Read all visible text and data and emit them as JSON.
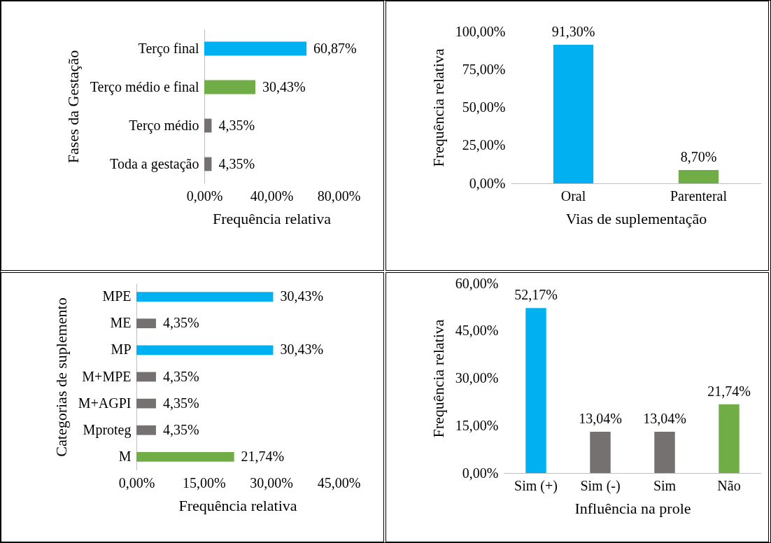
{
  "chart_data": [
    {
      "type": "bar",
      "orientation": "horizontal",
      "ylabel": "Fases da Gestação",
      "xlabel": "Frequência relativa",
      "categories": [
        "Terço final",
        "Terço médio e final",
        "Terço médio",
        "Toda a gestação"
      ],
      "values": [
        60.87,
        30.43,
        4.35,
        4.35
      ],
      "colors": [
        "#00b0f0",
        "#70ad47",
        "#767171",
        "#767171"
      ],
      "value_labels": [
        "60,87%",
        "30,43%",
        "4,35%",
        "4,35%"
      ],
      "xlim": [
        0,
        80
      ],
      "xticks": [
        {
          "value": 0,
          "label": "0,00%"
        },
        {
          "value": 40,
          "label": "40,00%"
        },
        {
          "value": 80,
          "label": "80,00%"
        }
      ]
    },
    {
      "type": "bar",
      "ylabel": "Frequência relativa",
      "xlabel": "Vias de suplementação",
      "categories": [
        "Oral",
        "Parenteral"
      ],
      "values": [
        91.3,
        8.7
      ],
      "colors": [
        "#00b0f0",
        "#70ad47"
      ],
      "value_labels": [
        "91,30%",
        "8,70%"
      ],
      "ylim": [
        0,
        100
      ],
      "yticks": [
        {
          "value": 0,
          "label": "0,00%"
        },
        {
          "value": 25,
          "label": "25,00%"
        },
        {
          "value": 50,
          "label": "50,00%"
        },
        {
          "value": 75,
          "label": "75,00%"
        },
        {
          "value": 100,
          "label": "100,00%"
        }
      ]
    },
    {
      "type": "bar",
      "orientation": "horizontal",
      "ylabel": "Categorias de suplemento",
      "xlabel": "Frequência relativa",
      "categories": [
        "MPE",
        "ME",
        "MP",
        "M+MPE",
        "M+AGPI",
        "Mproteg",
        "M"
      ],
      "values": [
        30.43,
        4.35,
        30.43,
        4.35,
        4.35,
        4.35,
        21.74
      ],
      "colors": [
        "#00b0f0",
        "#767171",
        "#00b0f0",
        "#767171",
        "#767171",
        "#767171",
        "#70ad47"
      ],
      "value_labels": [
        "30,43%",
        "4,35%",
        "30,43%",
        "4,35%",
        "4,35%",
        "4,35%",
        "21,74%"
      ],
      "xlim": [
        0,
        45
      ],
      "xticks": [
        {
          "value": 0,
          "label": "0,00%"
        },
        {
          "value": 15,
          "label": "15,00%"
        },
        {
          "value": 30,
          "label": "30,00%"
        },
        {
          "value": 45,
          "label": "45,00%"
        }
      ]
    },
    {
      "type": "bar",
      "ylabel": "Frequência relativa",
      "xlabel": "Influência na prole",
      "categories": [
        "Sim (+)",
        "Sim (-)",
        "Sim",
        "Não"
      ],
      "values": [
        52.17,
        13.04,
        13.04,
        21.74
      ],
      "colors": [
        "#00b0f0",
        "#767171",
        "#767171",
        "#70ad47"
      ],
      "value_labels": [
        "52,17%",
        "13,04%",
        "13,04%",
        "21,74%"
      ],
      "ylim": [
        0,
        60
      ],
      "yticks": [
        {
          "value": 0,
          "label": "0,00%"
        },
        {
          "value": 15,
          "label": "15,00%"
        },
        {
          "value": 30,
          "label": "30,00%"
        },
        {
          "value": 45,
          "label": "45,00%"
        },
        {
          "value": 60,
          "label": "60,00%"
        }
      ]
    }
  ]
}
